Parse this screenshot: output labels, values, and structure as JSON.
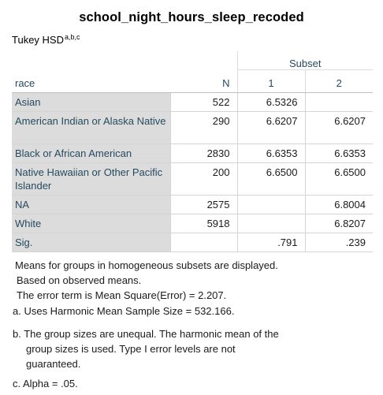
{
  "title": "school_night_hours_sleep_recoded",
  "subtitle": {
    "text": "Tukey HSD",
    "sup": "a,b,c"
  },
  "table": {
    "subset_header": "Subset",
    "columns": [
      "race",
      "N",
      "1",
      "2"
    ],
    "rows": [
      {
        "race": "Asian",
        "n": "522",
        "s1": "6.5326",
        "s2": ""
      },
      {
        "race": "American Indian or Alaska Native",
        "n": "290",
        "s1": "6.6207",
        "s2": "6.6207"
      },
      {
        "race": "Black or African American",
        "n": "2830",
        "s1": "6.6353",
        "s2": "6.6353"
      },
      {
        "race": "Native Hawaiian or Other Pacific Islander",
        "n": "200",
        "s1": "6.6500",
        "s2": "6.6500"
      },
      {
        "race": "NA",
        "n": "2575",
        "s1": "",
        "s2": "6.8004"
      },
      {
        "race": "White",
        "n": "5918",
        "s1": "",
        "s2": "6.8207"
      },
      {
        "race": "Sig.",
        "n": "",
        "s1": ".791",
        "s2": ".239"
      }
    ]
  },
  "footnotes": {
    "line1": "Means for groups in homogeneous subsets are displayed.",
    "line2": "Based on observed means.",
    "line3": "The error term is Mean Square(Error) = 2.207.",
    "a": "a. Uses Harmonic Mean Sample Size = 532.166.",
    "b_line1": "b. The group sizes are unequal. The harmonic mean of the",
    "b_line2": "group sizes is used. Type I error levels are not",
    "b_line3": "guaranteed.",
    "c": "c. Alpha = .05."
  }
}
